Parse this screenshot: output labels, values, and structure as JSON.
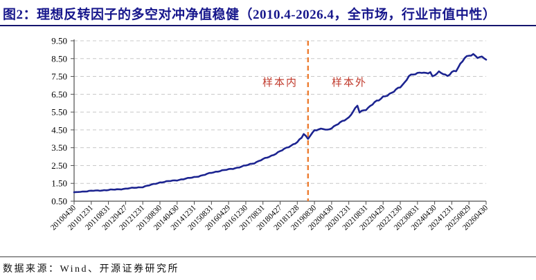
{
  "figure": {
    "title": "图2：理想反转因子的多空对冲净值稳健（2010.4-2026.4，全市场，行业市值中性）",
    "source_note": "数据来源：Wind、开源证券研究所"
  },
  "colors": {
    "title": "#17178C",
    "title_rule": "#14146E",
    "line": "#1C2490",
    "divider": "#ED7D31",
    "annotation": "#C0392B",
    "grid": "#C8C8C8",
    "axis": "#4D4D4D",
    "tick_text": "#000000"
  },
  "chart_data": {
    "type": "line",
    "title": "理想反转因子的多空对冲净值（2010.4-2026.4，全市场，行业市值中性）",
    "xlabel": "",
    "ylabel": "",
    "ylim": [
      0.5,
      9.5
    ],
    "ytick_labels": [
      "9.50",
      "8.50",
      "7.50",
      "6.50",
      "5.50",
      "4.50",
      "3.50",
      "2.50",
      "1.50",
      "0.50"
    ],
    "xtick_labels": [
      "20100430",
      "20101231",
      "20110831",
      "20120427",
      "20121231",
      "20130830",
      "20140430",
      "20141231",
      "20150831",
      "20160429",
      "20161230",
      "20170831",
      "20180427",
      "20181228",
      "20190830",
      "20200430",
      "20201231",
      "20210831",
      "20220429",
      "20221230",
      "20230831",
      "20240430",
      "20241231",
      "20250829",
      "20260430"
    ],
    "grid": "dashed-horizontal",
    "legend_position": "none",
    "divider": {
      "date": "201905",
      "left_label": "样本内",
      "right_label": "样本外"
    },
    "series": [
      {
        "name": "多空对冲净值",
        "points": [
          [
            "201004",
            1.0
          ],
          [
            "201008",
            1.04
          ],
          [
            "201012",
            1.08
          ],
          [
            "201104",
            1.1
          ],
          [
            "201108",
            1.13
          ],
          [
            "201112",
            1.16
          ],
          [
            "201204",
            1.2
          ],
          [
            "201208",
            1.25
          ],
          [
            "201212",
            1.3
          ],
          [
            "201304",
            1.42
          ],
          [
            "201308",
            1.55
          ],
          [
            "201312",
            1.62
          ],
          [
            "201404",
            1.68
          ],
          [
            "201408",
            1.76
          ],
          [
            "201412",
            1.85
          ],
          [
            "201504",
            1.95
          ],
          [
            "201508",
            2.1
          ],
          [
            "201512",
            2.2
          ],
          [
            "201604",
            2.28
          ],
          [
            "201608",
            2.38
          ],
          [
            "201612",
            2.5
          ],
          [
            "201704",
            2.65
          ],
          [
            "201708",
            2.85
          ],
          [
            "201712",
            3.05
          ],
          [
            "201804",
            3.3
          ],
          [
            "201808",
            3.55
          ],
          [
            "201812",
            3.82
          ],
          [
            "201902",
            4.05
          ],
          [
            "201903",
            4.27
          ],
          [
            "201905",
            4.0
          ],
          [
            "201906",
            4.2
          ],
          [
            "201908",
            4.48
          ],
          [
            "201912",
            4.55
          ],
          [
            "202002",
            4.5
          ],
          [
            "202004",
            4.62
          ],
          [
            "202008",
            4.9
          ],
          [
            "202012",
            5.2
          ],
          [
            "202102",
            5.55
          ],
          [
            "202104",
            5.85
          ],
          [
            "202105",
            5.48
          ],
          [
            "202108",
            5.65
          ],
          [
            "202112",
            6.05
          ],
          [
            "202202",
            6.15
          ],
          [
            "202204",
            6.35
          ],
          [
            "202208",
            6.58
          ],
          [
            "202212",
            6.9
          ],
          [
            "202302",
            7.15
          ],
          [
            "202304",
            7.55
          ],
          [
            "202308",
            7.65
          ],
          [
            "202310",
            7.74
          ],
          [
            "202312",
            7.7
          ],
          [
            "202402",
            7.74
          ],
          [
            "202403",
            7.46
          ],
          [
            "202406",
            7.74
          ],
          [
            "202408",
            7.68
          ],
          [
            "202410",
            7.53
          ],
          [
            "202412",
            7.72
          ],
          [
            "202502",
            7.8
          ],
          [
            "202504",
            8.2
          ],
          [
            "202506",
            8.58
          ],
          [
            "202508",
            8.66
          ],
          [
            "202510",
            8.7
          ],
          [
            "202512",
            8.56
          ],
          [
            "202602",
            8.62
          ],
          [
            "202604",
            8.44
          ]
        ]
      }
    ]
  }
}
